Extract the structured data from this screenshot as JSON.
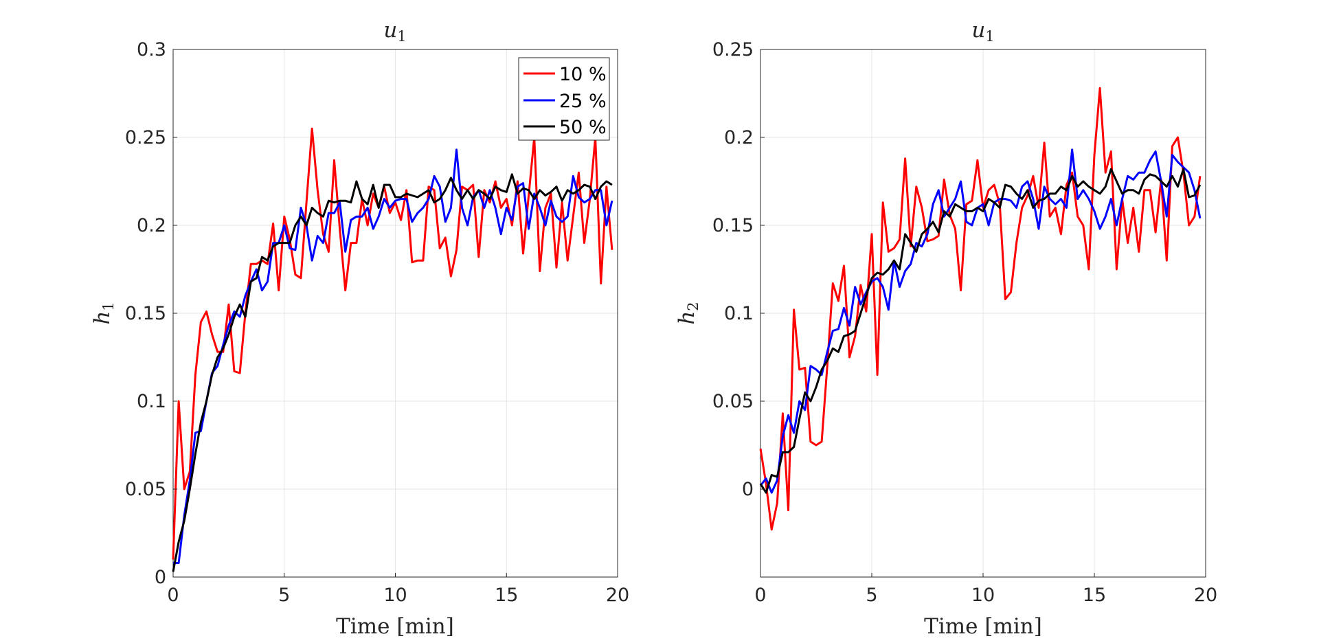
{
  "chart_data": [
    {
      "type": "line",
      "title": "u",
      "title_sub": "1",
      "xlabel": "Time [min]",
      "ylabel": "h",
      "ylabel_sub": "1",
      "xlim": [
        0,
        20
      ],
      "ylim": [
        0,
        0.3
      ],
      "xticks": [
        0,
        5,
        10,
        15,
        20
      ],
      "xtick_labels": [
        "0",
        "5",
        "10",
        "15",
        "20"
      ],
      "yticks": [
        0,
        0.05,
        0.1,
        0.15,
        0.2,
        0.25,
        0.3
      ],
      "ytick_labels": [
        "0",
        "0.05",
        "0.1",
        "0.15",
        "0.2",
        "0.25",
        "0.3"
      ],
      "grid": true,
      "legend_position": "top-right",
      "series": [
        {
          "name": "10 %",
          "color": "#ff0000",
          "x": [
            0,
            0.25,
            0.5,
            0.75,
            1,
            1.25,
            1.5,
            1.75,
            2,
            2.25,
            2.5,
            2.75,
            3,
            3.25,
            3.5,
            3.75,
            4,
            4.25,
            4.5,
            4.75,
            5,
            5.25,
            5.5,
            5.75,
            6,
            6.25,
            6.5,
            6.75,
            7,
            7.25,
            7.5,
            7.75,
            8,
            8.25,
            8.5,
            8.75,
            9,
            9.25,
            9.5,
            9.75,
            10,
            10.25,
            10.5,
            10.75,
            11,
            11.25,
            11.5,
            11.75,
            12,
            12.25,
            12.5,
            12.75,
            13,
            13.25,
            13.5,
            13.75,
            14,
            14.25,
            14.5,
            14.75,
            15,
            15.25,
            15.5,
            15.75,
            16,
            16.25,
            16.5,
            16.75,
            17,
            17.25,
            17.5,
            17.75,
            18,
            18.25,
            18.5,
            18.75,
            19,
            19.25,
            19.5,
            19.75
          ],
          "y": [
            0.01,
            0.1,
            0.05,
            0.06,
            0.115,
            0.145,
            0.151,
            0.138,
            0.128,
            0.128,
            0.155,
            0.117,
            0.116,
            0.15,
            0.178,
            0.178,
            0.18,
            0.178,
            0.201,
            0.163,
            0.205,
            0.192,
            0.172,
            0.17,
            0.213,
            0.255,
            0.22,
            0.195,
            0.185,
            0.237,
            0.198,
            0.163,
            0.19,
            0.19,
            0.215,
            0.2,
            0.218,
            0.21,
            0.222,
            0.207,
            0.213,
            0.203,
            0.22,
            0.179,
            0.18,
            0.18,
            0.222,
            0.22,
            0.187,
            0.193,
            0.171,
            0.186,
            0.222,
            0.22,
            0.223,
            0.182,
            0.22,
            0.213,
            0.225,
            0.21,
            0.215,
            0.2,
            0.225,
            0.184,
            0.217,
            0.25,
            0.174,
            0.21,
            0.218,
            0.176,
            0.213,
            0.18,
            0.205,
            0.23,
            0.19,
            0.215,
            0.25,
            0.167,
            0.222,
            0.186
          ]
        },
        {
          "name": "25 %",
          "color": "#0000ff",
          "x": [
            0,
            0.25,
            0.5,
            0.75,
            1,
            1.25,
            1.5,
            1.75,
            2,
            2.25,
            2.5,
            2.75,
            3,
            3.25,
            3.5,
            3.75,
            4,
            4.25,
            4.5,
            4.75,
            5,
            5.25,
            5.5,
            5.75,
            6,
            6.25,
            6.5,
            6.75,
            7,
            7.25,
            7.5,
            7.75,
            8,
            8.25,
            8.5,
            8.75,
            9,
            9.25,
            9.5,
            9.75,
            10,
            10.25,
            10.5,
            10.75,
            11,
            11.25,
            11.5,
            11.75,
            12,
            12.25,
            12.5,
            12.75,
            13,
            13.25,
            13.5,
            13.75,
            14,
            14.25,
            14.5,
            14.75,
            15,
            15.25,
            15.5,
            15.75,
            16,
            16.25,
            16.5,
            16.75,
            17,
            17.25,
            17.5,
            17.75,
            18,
            18.25,
            18.5,
            18.75,
            19,
            19.25,
            19.5,
            19.75
          ],
          "y": [
            0.008,
            0.008,
            0.035,
            0.055,
            0.082,
            0.083,
            0.1,
            0.116,
            0.12,
            0.132,
            0.143,
            0.151,
            0.148,
            0.16,
            0.168,
            0.175,
            0.163,
            0.168,
            0.19,
            0.19,
            0.2,
            0.187,
            0.186,
            0.21,
            0.2,
            0.18,
            0.194,
            0.19,
            0.207,
            0.207,
            0.213,
            0.185,
            0.203,
            0.205,
            0.205,
            0.21,
            0.198,
            0.205,
            0.215,
            0.21,
            0.214,
            0.215,
            0.215,
            0.202,
            0.207,
            0.21,
            0.215,
            0.228,
            0.222,
            0.202,
            0.21,
            0.243,
            0.21,
            0.2,
            0.216,
            0.22,
            0.21,
            0.22,
            0.21,
            0.195,
            0.21,
            0.203,
            0.222,
            0.224,
            0.198,
            0.218,
            0.21,
            0.2,
            0.214,
            0.205,
            0.202,
            0.205,
            0.228,
            0.216,
            0.213,
            0.215,
            0.22,
            0.22,
            0.2,
            0.214
          ]
        },
        {
          "name": "50 %",
          "color": "#000000",
          "x": [
            0,
            0.25,
            0.5,
            0.75,
            1,
            1.25,
            1.5,
            1.75,
            2,
            2.25,
            2.5,
            2.75,
            3,
            3.25,
            3.5,
            3.75,
            4,
            4.25,
            4.5,
            4.75,
            5,
            5.25,
            5.5,
            5.75,
            6,
            6.25,
            6.5,
            6.75,
            7,
            7.25,
            7.5,
            7.75,
            8,
            8.25,
            8.5,
            8.75,
            9,
            9.25,
            9.5,
            9.75,
            10,
            10.25,
            10.5,
            10.75,
            11,
            11.25,
            11.5,
            11.75,
            12,
            12.25,
            12.5,
            12.75,
            13,
            13.25,
            13.5,
            13.75,
            14,
            14.25,
            14.5,
            14.75,
            15,
            15.25,
            15.5,
            15.75,
            16,
            16.25,
            16.5,
            16.75,
            17,
            17.25,
            17.5,
            17.75,
            18,
            18.25,
            18.5,
            18.75,
            19,
            19.25,
            19.5,
            19.75
          ],
          "y": [
            0.003,
            0.02,
            0.032,
            0.05,
            0.07,
            0.088,
            0.1,
            0.115,
            0.125,
            0.13,
            0.138,
            0.148,
            0.155,
            0.148,
            0.168,
            0.17,
            0.182,
            0.18,
            0.188,
            0.19,
            0.19,
            0.19,
            0.2,
            0.205,
            0.2,
            0.21,
            0.207,
            0.205,
            0.214,
            0.213,
            0.214,
            0.214,
            0.213,
            0.225,
            0.215,
            0.212,
            0.223,
            0.21,
            0.223,
            0.223,
            0.216,
            0.216,
            0.218,
            0.217,
            0.216,
            0.218,
            0.22,
            0.213,
            0.215,
            0.22,
            0.227,
            0.22,
            0.215,
            0.22,
            0.215,
            0.22,
            0.218,
            0.215,
            0.222,
            0.22,
            0.219,
            0.229,
            0.218,
            0.221,
            0.22,
            0.215,
            0.22,
            0.217,
            0.219,
            0.222,
            0.214,
            0.22,
            0.218,
            0.22,
            0.223,
            0.222,
            0.215,
            0.222,
            0.225,
            0.223
          ]
        }
      ]
    },
    {
      "type": "line",
      "title": "u",
      "title_sub": "1",
      "xlabel": "Time [min]",
      "ylabel": "h",
      "ylabel_sub": "2",
      "xlim": [
        0,
        20
      ],
      "ylim": [
        -0.05,
        0.25
      ],
      "xticks": [
        0,
        5,
        10,
        15,
        20
      ],
      "xtick_labels": [
        "0",
        "5",
        "10",
        "15",
        "20"
      ],
      "yticks": [
        0,
        0.05,
        0.1,
        0.15,
        0.2,
        0.25
      ],
      "ytick_labels": [
        "0",
        "0.05",
        "0.1",
        "0.15",
        "0.2",
        "0.25"
      ],
      "grid": true,
      "series": [
        {
          "name": "10 %",
          "color": "#ff0000",
          "x": [
            0,
            0.25,
            0.5,
            0.75,
            1,
            1.25,
            1.5,
            1.75,
            2,
            2.25,
            2.5,
            2.75,
            3,
            3.25,
            3.5,
            3.75,
            4,
            4.25,
            4.5,
            4.75,
            5,
            5.25,
            5.5,
            5.75,
            6,
            6.25,
            6.5,
            6.75,
            7,
            7.25,
            7.5,
            7.75,
            8,
            8.25,
            8.5,
            8.75,
            9,
            9.25,
            9.5,
            9.75,
            10,
            10.25,
            10.5,
            10.75,
            11,
            11.25,
            11.5,
            11.75,
            12,
            12.25,
            12.5,
            12.75,
            13,
            13.25,
            13.5,
            13.75,
            14,
            14.25,
            14.5,
            14.75,
            15,
            15.25,
            15.5,
            15.75,
            16,
            16.25,
            16.5,
            16.75,
            17,
            17.25,
            17.5,
            17.75,
            18,
            18.25,
            18.5,
            18.75,
            19,
            19.25,
            19.5,
            19.75
          ],
          "y": [
            0.023,
            0.003,
            -0.023,
            -0.008,
            0.043,
            -0.012,
            0.102,
            0.068,
            0.069,
            0.027,
            0.025,
            0.027,
            0.07,
            0.117,
            0.107,
            0.127,
            0.075,
            0.087,
            0.116,
            0.101,
            0.145,
            0.065,
            0.163,
            0.135,
            0.137,
            0.142,
            0.188,
            0.138,
            0.172,
            0.16,
            0.141,
            0.142,
            0.144,
            0.176,
            0.156,
            0.148,
            0.113,
            0.162,
            0.164,
            0.187,
            0.16,
            0.17,
            0.173,
            0.162,
            0.108,
            0.112,
            0.14,
            0.16,
            0.167,
            0.178,
            0.16,
            0.197,
            0.155,
            0.16,
            0.145,
            0.173,
            0.18,
            0.155,
            0.15,
            0.125,
            0.19,
            0.228,
            0.18,
            0.192,
            0.125,
            0.165,
            0.14,
            0.16,
            0.135,
            0.17,
            0.17,
            0.146,
            0.176,
            0.13,
            0.195,
            0.2,
            0.18,
            0.15,
            0.155,
            0.178
          ]
        },
        {
          "name": "25 %",
          "color": "#0000ff",
          "x": [
            0,
            0.25,
            0.5,
            0.75,
            1,
            1.25,
            1.5,
            1.75,
            2,
            2.25,
            2.5,
            2.75,
            3,
            3.25,
            3.5,
            3.75,
            4,
            4.25,
            4.5,
            4.75,
            5,
            5.25,
            5.5,
            5.75,
            6,
            6.25,
            6.5,
            6.75,
            7,
            7.25,
            7.5,
            7.75,
            8,
            8.25,
            8.5,
            8.75,
            9,
            9.25,
            9.5,
            9.75,
            10,
            10.25,
            10.5,
            10.75,
            11,
            11.25,
            11.5,
            11.75,
            12,
            12.25,
            12.5,
            12.75,
            13,
            13.25,
            13.5,
            13.75,
            14,
            14.25,
            14.5,
            14.75,
            15,
            15.25,
            15.5,
            15.75,
            16,
            16.25,
            16.5,
            16.75,
            17,
            17.25,
            17.5,
            17.75,
            18,
            18.25,
            18.5,
            18.75,
            19,
            19.25,
            19.5,
            19.75
          ],
          "y": [
            0.002,
            0.006,
            -0.002,
            0.005,
            0.03,
            0.042,
            0.032,
            0.05,
            0.045,
            0.07,
            0.068,
            0.065,
            0.078,
            0.09,
            0.091,
            0.103,
            0.093,
            0.115,
            0.105,
            0.112,
            0.118,
            0.12,
            0.115,
            0.102,
            0.13,
            0.115,
            0.124,
            0.128,
            0.14,
            0.138,
            0.145,
            0.162,
            0.17,
            0.155,
            0.16,
            0.165,
            0.175,
            0.152,
            0.15,
            0.16,
            0.162,
            0.15,
            0.163,
            0.165,
            0.165,
            0.164,
            0.16,
            0.172,
            0.175,
            0.165,
            0.148,
            0.172,
            0.165,
            0.162,
            0.165,
            0.16,
            0.193,
            0.165,
            0.17,
            0.165,
            0.158,
            0.148,
            0.155,
            0.165,
            0.15,
            0.165,
            0.178,
            0.176,
            0.18,
            0.18,
            0.187,
            0.192,
            0.175,
            0.155,
            0.19,
            0.186,
            0.183,
            0.18,
            0.17,
            0.154
          ]
        },
        {
          "name": "50 %",
          "color": "#000000",
          "x": [
            0,
            0.25,
            0.5,
            0.75,
            1,
            1.25,
            1.5,
            1.75,
            2,
            2.25,
            2.5,
            2.75,
            3,
            3.25,
            3.5,
            3.75,
            4,
            4.25,
            4.5,
            4.75,
            5,
            5.25,
            5.5,
            5.75,
            6,
            6.25,
            6.5,
            6.75,
            7,
            7.25,
            7.5,
            7.75,
            8,
            8.25,
            8.5,
            8.75,
            9,
            9.25,
            9.5,
            9.75,
            10,
            10.25,
            10.5,
            10.75,
            11,
            11.25,
            11.5,
            11.75,
            12,
            12.25,
            12.5,
            12.75,
            13,
            13.25,
            13.5,
            13.75,
            14,
            14.25,
            14.5,
            14.75,
            15,
            15.25,
            15.5,
            15.75,
            16,
            16.25,
            16.5,
            16.75,
            17,
            17.25,
            17.5,
            17.75,
            18,
            18.25,
            18.5,
            18.75,
            19,
            19.25,
            19.5,
            19.75
          ],
          "y": [
            0.003,
            -0.002,
            0.008,
            0.007,
            0.021,
            0.021,
            0.024,
            0.04,
            0.055,
            0.05,
            0.058,
            0.068,
            0.073,
            0.08,
            0.078,
            0.087,
            0.088,
            0.09,
            0.1,
            0.11,
            0.12,
            0.123,
            0.122,
            0.125,
            0.13,
            0.125,
            0.145,
            0.14,
            0.135,
            0.145,
            0.148,
            0.152,
            0.146,
            0.158,
            0.155,
            0.162,
            0.16,
            0.158,
            0.158,
            0.16,
            0.158,
            0.165,
            0.163,
            0.16,
            0.173,
            0.172,
            0.168,
            0.165,
            0.17,
            0.16,
            0.164,
            0.165,
            0.168,
            0.168,
            0.172,
            0.17,
            0.178,
            0.172,
            0.175,
            0.172,
            0.17,
            0.168,
            0.172,
            0.182,
            0.175,
            0.168,
            0.17,
            0.17,
            0.168,
            0.176,
            0.179,
            0.178,
            0.175,
            0.172,
            0.178,
            0.172,
            0.182,
            0.166,
            0.167,
            0.173
          ]
        }
      ]
    }
  ]
}
